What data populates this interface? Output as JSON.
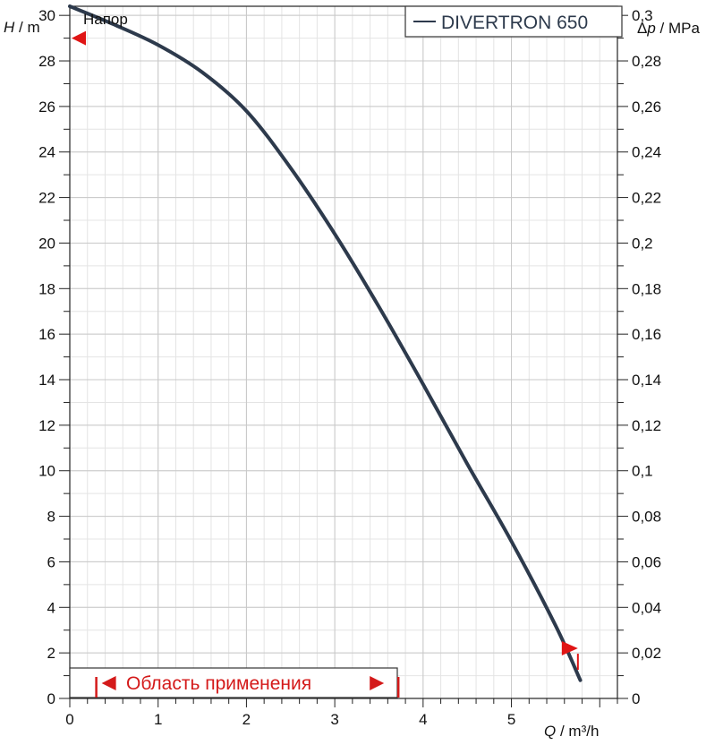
{
  "chart_data": {
    "type": "line",
    "title": "Напор",
    "xlabel": "Q / m³/h",
    "ylabel_left": "H / m",
    "ylabel_right": "Δp / MPa",
    "xlim": [
      0,
      6.2
    ],
    "ylim": [
      0,
      30.4
    ],
    "x_ticks": [
      0,
      1,
      2,
      3,
      4,
      5
    ],
    "x_tick_labels": [
      "0",
      "1",
      "2",
      "3",
      "4",
      "5"
    ],
    "y_ticks": [
      0,
      2,
      4,
      6,
      8,
      10,
      12,
      14,
      16,
      18,
      20,
      22,
      24,
      26,
      28,
      30
    ],
    "y_tick_labels": [
      "0",
      "2",
      "4",
      "6",
      "8",
      "10",
      "12",
      "14",
      "16",
      "18",
      "20",
      "22",
      "24",
      "26",
      "28",
      "30"
    ],
    "y2_ticks": [
      0,
      0.02,
      0.04,
      0.06,
      0.08,
      0.1,
      0.12,
      0.14,
      0.16,
      0.18,
      0.2,
      0.22,
      0.24,
      0.26,
      0.28,
      0.3
    ],
    "y2_tick_labels": [
      "0",
      "0,02",
      "0,04",
      "0,06",
      "0,08",
      "0,1",
      "0,12",
      "0,14",
      "0,16",
      "0,18",
      "0,2",
      "0,22",
      "0,24",
      "0,26",
      "0,28",
      "0,3"
    ],
    "grid": true,
    "legend_position": "top-right",
    "series": [
      {
        "name": "DIVERTRON 650",
        "color": "#2d3a4c",
        "x": [
          0,
          0.5,
          1.0,
          1.5,
          2.0,
          2.5,
          3.0,
          3.5,
          4.0,
          4.5,
          5.0,
          5.5,
          5.78
        ],
        "y": [
          30.4,
          29.6,
          28.7,
          27.5,
          25.8,
          23.3,
          20.4,
          17.2,
          13.8,
          10.3,
          6.9,
          3.2,
          0.8
        ]
      }
    ],
    "markers": [
      {
        "name": "max-head-marker",
        "x": 0.0,
        "y": 29.0,
        "direction": "left",
        "color": "#e01515"
      },
      {
        "name": "max-flow-marker",
        "x": 5.55,
        "y": 2.2,
        "direction": "right",
        "color": "#e01515"
      }
    ],
    "application_range": {
      "label": "Область применения",
      "from": 0.3,
      "to": 3.72,
      "color": "#d41a1a"
    }
  }
}
